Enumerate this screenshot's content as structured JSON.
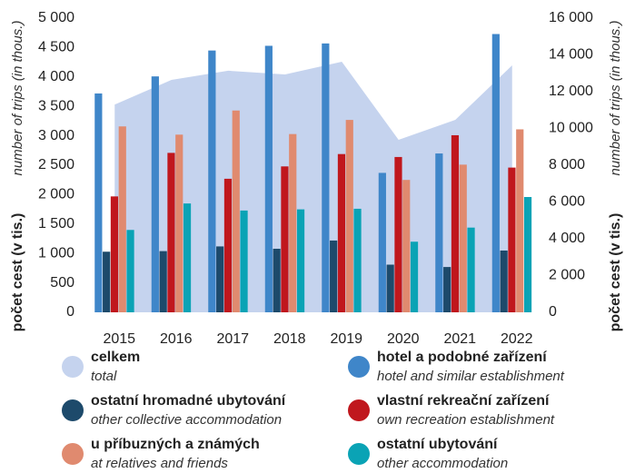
{
  "chart_data": {
    "type": "bar",
    "y_label": "počet cest (v tis.)",
    "y_label_en": "number of trips (in thous.)",
    "y2_label": "počet cest (v tis.)",
    "y2_label_en": "number of trips (in thous.)",
    "categories": [
      "2015",
      "2016",
      "2017",
      "2018",
      "2019",
      "2020",
      "2021",
      "2022"
    ],
    "ylim": [
      0,
      5000
    ],
    "yticks": [
      0,
      500,
      {
        "value": 1000,
        "label": "1 000"
      },
      {
        "value": 1500,
        "label": "1 500"
      },
      {
        "value": 2000,
        "label": "2 000"
      },
      {
        "value": 2500,
        "label": "2 500"
      },
      {
        "value": 3000,
        "label": "3 000"
      },
      {
        "value": 3500,
        "label": "3 500"
      },
      {
        "value": 4000,
        "label": "4 000"
      },
      {
        "value": 4500,
        "label": "4 500"
      },
      {
        "value": 5000,
        "label": "5 000"
      }
    ],
    "y2lim": [
      0,
      16000
    ],
    "y2ticks": [
      0,
      {
        "value": 2000,
        "label": "2 000"
      },
      {
        "value": 4000,
        "label": "4 000"
      },
      {
        "value": 6000,
        "label": "6 000"
      },
      {
        "value": 8000,
        "label": "8 000"
      },
      {
        "value": 10000,
        "label": "10 000"
      },
      {
        "value": 12000,
        "label": "12 000"
      },
      {
        "value": 14000,
        "label": "14 000"
      },
      {
        "value": 16000,
        "label": "16 000"
      }
    ],
    "grid": false,
    "series": [
      {
        "name": "celkem",
        "name_en": "total",
        "type": "area",
        "axis": "y2",
        "color": "#c5d3ee",
        "values": [
          11300,
          12640,
          13140,
          12940,
          13630,
          9380,
          10470,
          13430
        ]
      },
      {
        "name": "hotel a podobné zařízení",
        "name_en": "hotel and similar establishment",
        "color": "#3f86c9",
        "values": [
          3720,
          4010,
          4450,
          4530,
          4570,
          2370,
          2700,
          4730
        ]
      },
      {
        "name": "ostatní hromadné ubytování",
        "name_en": "other collective accommodation",
        "color": "#1d4a6b",
        "values": [
          1030,
          1040,
          1120,
          1080,
          1220,
          810,
          770,
          1050
        ]
      },
      {
        "name": "vlastní rekreační zařízení",
        "name_en": "own recreation establishment",
        "color": "#c0171d",
        "values": [
          1970,
          2710,
          2270,
          2480,
          2690,
          2640,
          3010,
          2460
        ]
      },
      {
        "name": "u příbuzných a známých",
        "name_en": "at relatives and friends",
        "color": "#e08a6f",
        "values": [
          3160,
          3020,
          3430,
          3030,
          3270,
          2250,
          2510,
          3110
        ]
      },
      {
        "name": "ostatní ubytování",
        "name_en": "other accommodation",
        "color": "#0aa3b5",
        "values": [
          1400,
          1850,
          1730,
          1750,
          1760,
          1200,
          1440,
          1960
        ]
      }
    ]
  }
}
